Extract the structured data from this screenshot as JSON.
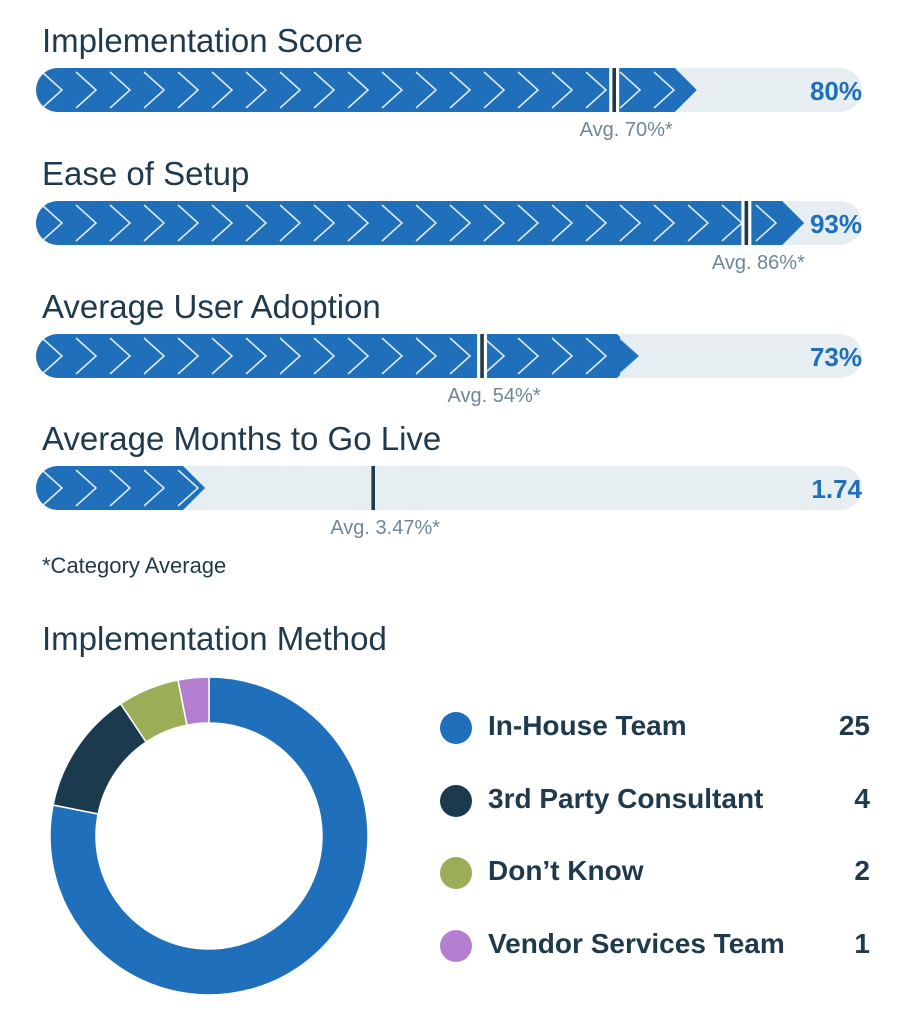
{
  "metrics": [
    {
      "title": "Implementation Score",
      "value": 80,
      "max": 100,
      "value_label": "80%",
      "avg": 70,
      "avg_label": "Avg. 70%*"
    },
    {
      "title": "Ease of Setup",
      "value": 93,
      "max": 100,
      "value_label": "93%",
      "avg": 86,
      "avg_label": "Avg. 86%*"
    },
    {
      "title": "Average User Adoption",
      "value": 73,
      "max": 100,
      "value_label": "73%",
      "avg": 54,
      "avg_label": "Avg. 54%*"
    },
    {
      "title": "Average Months to Go Live",
      "value": 1.74,
      "max": 8.5,
      "value_label": "1.74",
      "avg": 3.47,
      "avg_label": "Avg. 3.47%*"
    }
  ],
  "footnote": "*Category Average",
  "method_title": "Implementation Method",
  "colors": {
    "bar_fill": "#1f6fba",
    "bar_track": "#e6eef2",
    "avg_marker": "#1f3a4c",
    "value_text": "#1f6fba"
  },
  "chart_data": [
    {
      "type": "bar",
      "orientation": "horizontal",
      "categories": [
        "Implementation Score",
        "Ease of Setup",
        "Average User Adoption"
      ],
      "series": [
        {
          "name": "",
          "values": [
            80,
            93,
            73
          ]
        },
        {
          "name": "Avg.",
          "values": [
            70,
            86,
            54
          ]
        }
      ],
      "unit": "%",
      "xlim": [
        0,
        100
      ]
    },
    {
      "type": "bar",
      "orientation": "horizontal",
      "categories": [
        "Average Months to Go Live"
      ],
      "series": [
        {
          "name": "",
          "values": [
            1.74
          ]
        },
        {
          "name": "Avg.",
          "values": [
            3.47
          ]
        }
      ]
    },
    {
      "type": "pie",
      "variant": "donut",
      "title": "Implementation Method",
      "labels": [
        "In-House Team",
        "3rd Party Consultant",
        "Don’t Know",
        "Vendor Services Team"
      ],
      "values": [
        25,
        4,
        2,
        1
      ],
      "colors": [
        "#1f6fba",
        "#1c3a4e",
        "#9aae57",
        "#b57fd1"
      ],
      "legend_position": "right"
    }
  ]
}
